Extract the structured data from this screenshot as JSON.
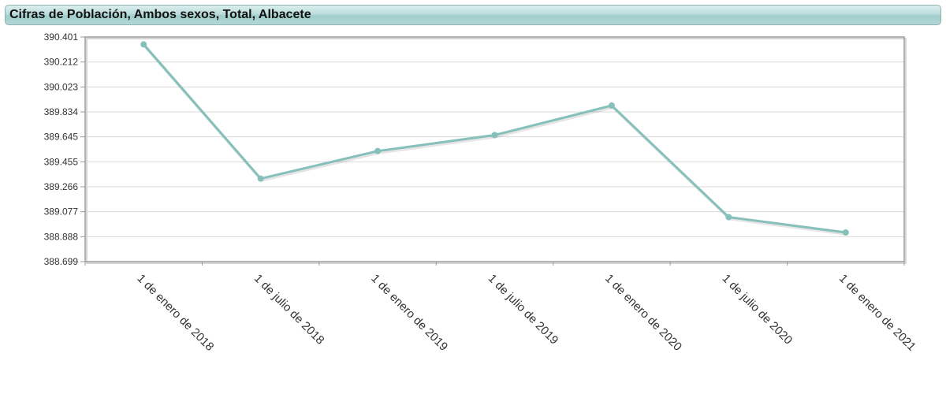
{
  "title": "Cifras de Población, Ambos sexos, Total, Albacete",
  "chart_data": {
    "type": "line",
    "title": "Cifras de Población, Ambos sexos, Total, Albacete",
    "xlabel": "",
    "ylabel": "",
    "categories": [
      "1 de enero de 2018",
      "1 de julio de 2018",
      "1 de enero de 2019",
      "1 de julio de 2019",
      "1 de enero de 2020",
      "1 de julio de 2020",
      "1 de enero de 2021"
    ],
    "series": [
      {
        "values": [
          390345,
          389328,
          389537,
          389658,
          389882,
          389036,
          388920
        ]
      }
    ],
    "ylim": [
      388699,
      390401
    ],
    "yticks": [
      "388.699",
      "388.888",
      "389.077",
      "389.266",
      "389.455",
      "389.645",
      "389.834",
      "390.023",
      "390.212",
      "390.401"
    ],
    "grid": true,
    "legend": "none",
    "colors": {
      "line": "#86c0bb",
      "grid": "#d9d9d9",
      "frame": "#9a9a9a",
      "header": "#a9d4d1"
    }
  }
}
